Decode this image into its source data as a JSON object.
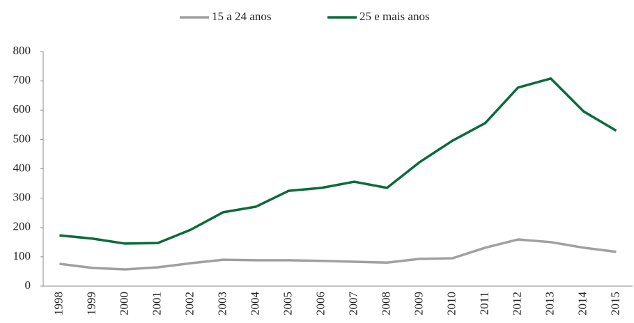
{
  "chart_data": {
    "type": "line",
    "categories": [
      "1998",
      "1999",
      "2000",
      "2001",
      "2002",
      "2003",
      "2004",
      "2005",
      "2006",
      "2007",
      "2008",
      "2009",
      "2010",
      "2011",
      "2012",
      "2013",
      "2014",
      "2015"
    ],
    "series": [
      {
        "name": "15 a 24 anos",
        "color": "#a0a0a0",
        "values": [
          76,
          62,
          57,
          64,
          78,
          90,
          88,
          88,
          86,
          83,
          80,
          93,
          95,
          131,
          159,
          150,
          131,
          117
        ]
      },
      {
        "name": "25 e mais anos",
        "color": "#0b6b3a",
        "values": [
          173,
          162,
          145,
          147,
          192,
          252,
          271,
          325,
          335,
          356,
          335,
          423,
          496,
          556,
          677,
          708,
          596,
          530
        ]
      }
    ],
    "ylim": [
      0,
      800
    ],
    "yticks": [
      0,
      100,
      200,
      300,
      400,
      500,
      600,
      700,
      800
    ],
    "grid": false,
    "legend": "top"
  }
}
